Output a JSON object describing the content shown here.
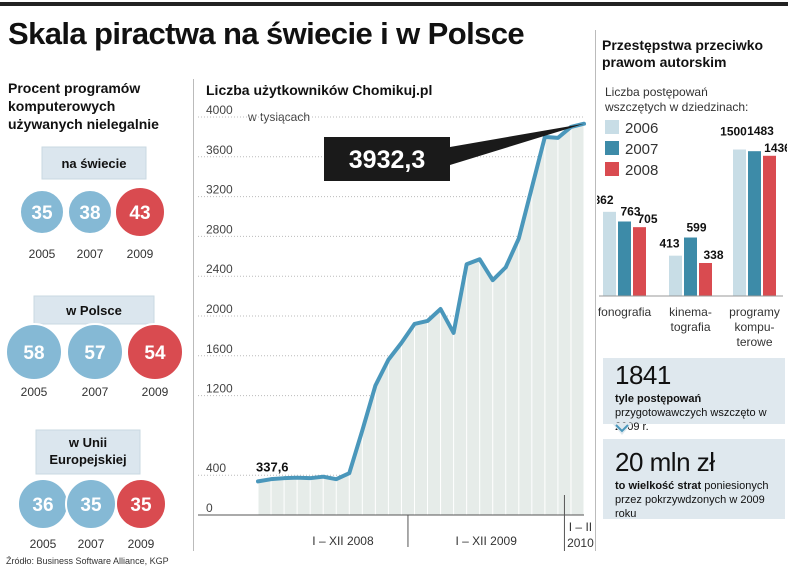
{
  "title": "Skala piractwa na świecie i w Polsce",
  "left_panel": {
    "heading": "Procent programów komputerowych używanych nielegalnie",
    "groups": [
      {
        "label": "na świecie",
        "years": [
          "2005",
          "2007",
          "2009"
        ],
        "values": [
          "35",
          "38",
          "43"
        ]
      },
      {
        "label": "w Polsce",
        "years": [
          "2005",
          "2007",
          "2009"
        ],
        "values": [
          "58",
          "57",
          "54"
        ]
      },
      {
        "label": "w Unii Europejskiej",
        "years": [
          "2005",
          "2007",
          "2009"
        ],
        "values": [
          "36",
          "35",
          "35"
        ]
      }
    ]
  },
  "line_chart_heading": "Liczba użytkowników Chomikuj.pl",
  "bar_chart_heading": "Przestępstwa przeciwko prawom autorskim",
  "note1": {
    "value": "1841",
    "bold": "tyle postępowań",
    "text": "przygotowawczych wszczęto w 2009 r."
  },
  "note2": {
    "value": "20 mln zł",
    "bold": "to wielkość strat",
    "text": "poniesionych przez pokrzywdzonych w 2009 roku"
  },
  "source": "Źródło: Business Software Alliance, KGP",
  "colors": {
    "c2006": "#c8dde6",
    "c2007": "#3d8ba8",
    "c2008": "#d94b50",
    "circle": "#85b9d5",
    "circle_dark": "#d94b50",
    "label_bg": "#dbe6ee",
    "line": "#4a97bb",
    "area": "#e6ece9",
    "callout": "#1a1a1a"
  },
  "chart_data": [
    {
      "type": "area",
      "title": "Liczba użytkowników Chomikuj.pl",
      "ylabel": "w tysiącach",
      "ylim": [
        0,
        4000
      ],
      "yticks": [
        "0",
        "400",
        "1200",
        "1600",
        "2000",
        "2400",
        "2800",
        "3200",
        "3600",
        "4000"
      ],
      "ytick_values": [
        0,
        400,
        1200,
        1600,
        2000,
        2400,
        2800,
        3200,
        3600,
        4000
      ],
      "period_labels": [
        "I – XII 2008",
        "I – XII 2009",
        "I – II 2010"
      ],
      "series": [
        {
          "values": [
            337.6,
            360,
            370,
            375,
            370,
            385,
            360,
            420,
            850,
            1300,
            1560,
            1730,
            1920,
            1950,
            2070,
            1830,
            2520,
            2570,
            2360,
            2490,
            2780,
            3290,
            3800,
            3790,
            3900,
            3932.3
          ]
        }
      ],
      "annotations": [
        "337,6",
        "3932,3"
      ]
    },
    {
      "type": "bar",
      "title": "Liczba postępowań wszczętych w dziedzinach:",
      "categories": [
        "fonografia",
        "kinematografia",
        "programy komputerowe"
      ],
      "category_lines": [
        [
          "fonografia"
        ],
        [
          "kinema-",
          "tografia"
        ],
        [
          "programy",
          "kompu-",
          "terowe"
        ]
      ],
      "series": [
        {
          "name": "2006",
          "values": [
            862,
            413,
            1500
          ]
        },
        {
          "name": "2007",
          "values": [
            763,
            599,
            1483
          ]
        },
        {
          "name": "2008",
          "values": [
            705,
            338,
            1436
          ]
        }
      ],
      "ylim": [
        0,
        1700
      ]
    }
  ]
}
